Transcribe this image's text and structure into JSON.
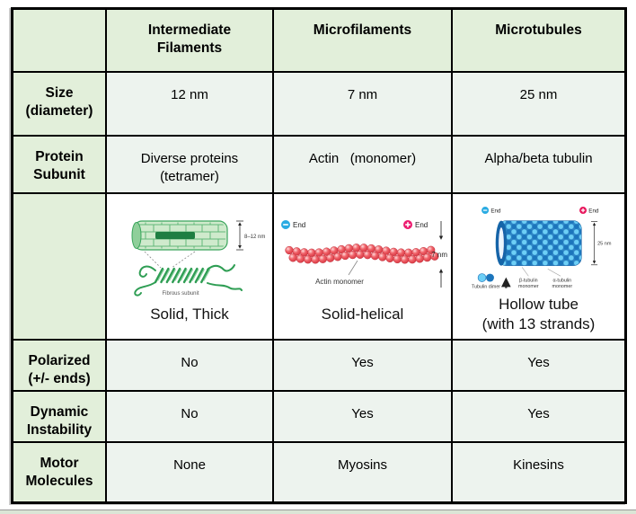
{
  "colors": {
    "header-green": "#e2efda",
    "cell-green": "#edf3ee",
    "minus-end-blue": "#29abe2",
    "plus-end-pink": "#ec1d70",
    "if-green": "#2f9e54",
    "mf-red": "#e8404d",
    "mt-blue-light": "#6dcff6",
    "mt-blue-dark": "#1c75bc"
  },
  "header": {
    "col1": "Intermediate\nFilaments",
    "col2": "Microfilaments",
    "col3": "Microtubules"
  },
  "rows": {
    "size": {
      "label": "Size\n(diameter)",
      "v1": "12 nm",
      "v2": "7 nm",
      "v3": "25 nm"
    },
    "protein": {
      "label": "Protein\nSubunit",
      "v1": "Diverse proteins\n(tetramer)",
      "v2": "Actin   (monomer)",
      "v3": "Alpha/beta tubulin"
    },
    "polarized": {
      "label": "Polarized\n(+/- ends)",
      "v1": "No",
      "v2": "Yes",
      "v3": "Yes"
    },
    "dynamic": {
      "label": "Dynamic\nInstability",
      "v1": "No",
      "v2": "Yes",
      "v3": "Yes"
    },
    "motor": {
      "label": "Motor\nMolecules",
      "v1": "None",
      "v2": "Myosins",
      "v3": "Kinesins"
    }
  },
  "figures": {
    "intermediate": {
      "size_label": "8–12 nm",
      "subunit_label": "Fibrous subunit",
      "caption": "Solid, Thick"
    },
    "microfilament": {
      "minus_label": "End",
      "plus_label": "End",
      "size_label": "7 nm",
      "monomer_label": "Actin monomer",
      "caption": "Solid-helical"
    },
    "microtubule": {
      "minus_label": "End",
      "plus_label": "End",
      "size_label": "25 nm",
      "dimer_label": "Tubulin dimer",
      "beta_line1": "β-tubulin",
      "beta_line2": "monomer",
      "alpha_line1": "α-tubulin",
      "alpha_line2": "monomer",
      "caption": "Hollow tube\n(with 13 strands)"
    }
  }
}
